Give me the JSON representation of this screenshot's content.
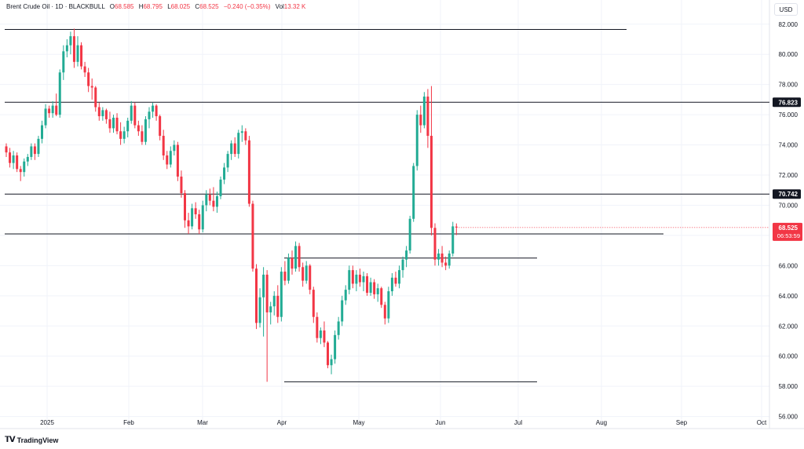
{
  "legend": {
    "symbol": "Brent Crude Oil · 1D · BLACKBULL",
    "o_label": "O",
    "o_value": "68.585",
    "h_label": "H",
    "h_value": "68.795",
    "l_label": "L",
    "l_value": "68.025",
    "c_label": "C",
    "c_value": "68.525",
    "change": "−0.240 (−0.35%)",
    "vol_label": "Vol",
    "vol_value": "13.32 K"
  },
  "currency": "USD",
  "footer": {
    "logo_mark": "𝗧𝗩",
    "brand": "TradingView"
  },
  "colors": {
    "up": "#22ab94",
    "down": "#f23645",
    "grid": "#f0f3fa",
    "line": "#131722"
  },
  "chart_data": {
    "type": "candlestick",
    "y_ticks": [
      "56.000",
      "58.000",
      "60.000",
      "62.000",
      "64.000",
      "66.000",
      "68.000",
      "70.000",
      "72.000",
      "74.000",
      "76.000",
      "78.000",
      "80.000",
      "82.000"
    ],
    "x_ticks": [
      "2025",
      "Feb",
      "Mar",
      "Apr",
      "May",
      "Jun",
      "Jul",
      "Aug",
      "Sep",
      "Oct"
    ],
    "ylim": [
      55.2,
      83.6
    ],
    "horizontal_levels": [
      {
        "price": 81.65,
        "x_end": "Aug",
        "label": ""
      },
      {
        "price": 76.823,
        "x_end": "axis",
        "label": "76.823"
      },
      {
        "price": 70.742,
        "x_end": "axis",
        "label": "70.742"
      },
      {
        "price": 68.1,
        "x_end": "Sep",
        "label": ""
      },
      {
        "price": 66.5,
        "x_start": "Apr",
        "x_end": "Jul",
        "label": ""
      },
      {
        "price": 58.3,
        "x_start": "Apr",
        "x_end": "Jul",
        "label": ""
      }
    ],
    "last_price": {
      "value": "68.525",
      "countdown": "06:53:59"
    },
    "candles": [
      [
        73.9,
        74.1,
        73.2,
        73.5
      ],
      [
        73.5,
        73.8,
        72.5,
        72.8
      ],
      [
        72.8,
        73.6,
        72.4,
        73.3
      ],
      [
        73.3,
        73.5,
        72.2,
        72.4
      ],
      [
        72.4,
        72.6,
        71.6,
        72.2
      ],
      [
        72.2,
        73.1,
        71.9,
        72.9
      ],
      [
        72.9,
        73.4,
        72.6,
        73.2
      ],
      [
        73.2,
        74.1,
        73.0,
        73.9
      ],
      [
        73.9,
        74.1,
        73.0,
        73.4
      ],
      [
        73.4,
        74.6,
        73.2,
        74.4
      ],
      [
        74.4,
        75.6,
        74.1,
        75.3
      ],
      [
        75.3,
        76.7,
        75.1,
        76.4
      ],
      [
        76.4,
        76.6,
        75.8,
        76.1
      ],
      [
        76.1,
        76.9,
        75.8,
        76.6
      ],
      [
        76.6,
        77.4,
        75.9,
        76.0
      ],
      [
        76.0,
        79.0,
        75.8,
        78.8
      ],
      [
        78.8,
        80.6,
        78.3,
        80.2
      ],
      [
        80.2,
        81.0,
        79.8,
        80.6
      ],
      [
        80.6,
        81.5,
        80.0,
        81.2
      ],
      [
        81.2,
        81.7,
        79.1,
        79.5
      ],
      [
        79.5,
        81.2,
        79.2,
        80.6
      ],
      [
        80.6,
        80.8,
        79.0,
        79.2
      ],
      [
        79.2,
        79.5,
        78.5,
        78.8
      ],
      [
        78.8,
        79.1,
        77.5,
        77.9
      ],
      [
        77.9,
        78.4,
        77.0,
        77.8
      ],
      [
        77.8,
        77.9,
        76.2,
        76.5
      ],
      [
        76.5,
        76.8,
        75.6,
        75.9
      ],
      [
        75.9,
        76.5,
        75.6,
        76.3
      ],
      [
        76.3,
        76.4,
        75.4,
        75.7
      ],
      [
        75.7,
        76.2,
        74.8,
        75.1
      ],
      [
        75.1,
        76.0,
        74.8,
        75.8
      ],
      [
        75.8,
        76.1,
        74.7,
        74.9
      ],
      [
        74.9,
        75.5,
        74.0,
        74.4
      ],
      [
        74.4,
        75.2,
        74.1,
        74.9
      ],
      [
        74.9,
        75.8,
        74.5,
        75.6
      ],
      [
        75.6,
        76.9,
        75.4,
        76.6
      ],
      [
        76.6,
        76.8,
        75.1,
        75.3
      ],
      [
        75.3,
        75.6,
        74.6,
        74.9
      ],
      [
        74.9,
        75.3,
        74.0,
        74.2
      ],
      [
        74.2,
        75.9,
        74.0,
        75.7
      ],
      [
        75.7,
        76.5,
        75.1,
        76.2
      ],
      [
        76.2,
        76.8,
        75.8,
        76.6
      ],
      [
        76.6,
        76.7,
        75.6,
        75.9
      ],
      [
        75.9,
        76.0,
        74.3,
        74.6
      ],
      [
        74.6,
        75.0,
        73.0,
        73.3
      ],
      [
        73.3,
        73.6,
        72.4,
        72.7
      ],
      [
        72.7,
        73.9,
        72.5,
        73.6
      ],
      [
        73.6,
        74.3,
        73.3,
        74.0
      ],
      [
        74.0,
        74.2,
        71.6,
        71.9
      ],
      [
        71.9,
        72.3,
        70.5,
        70.8
      ],
      [
        70.8,
        71.0,
        68.5,
        69.0
      ],
      [
        69.0,
        69.5,
        68.1,
        68.6
      ],
      [
        68.6,
        70.1,
        68.4,
        69.8
      ],
      [
        69.8,
        70.2,
        69.1,
        69.4
      ],
      [
        69.4,
        69.7,
        68.1,
        68.4
      ],
      [
        68.4,
        70.3,
        68.2,
        70.0
      ],
      [
        70.0,
        71.0,
        69.6,
        70.7
      ],
      [
        70.7,
        71.1,
        70.0,
        70.3
      ],
      [
        70.3,
        71.2,
        69.6,
        69.9
      ],
      [
        69.9,
        70.9,
        69.5,
        70.6
      ],
      [
        70.6,
        71.9,
        70.4,
        71.7
      ],
      [
        71.7,
        72.8,
        71.4,
        72.5
      ],
      [
        72.5,
        73.6,
        72.2,
        73.4
      ],
      [
        73.4,
        74.3,
        73.0,
        74.1
      ],
      [
        74.1,
        74.5,
        73.2,
        73.4
      ],
      [
        73.4,
        75.0,
        73.1,
        74.8
      ],
      [
        74.8,
        75.3,
        74.2,
        74.9
      ],
      [
        74.9,
        75.1,
        74.0,
        74.3
      ],
      [
        74.3,
        74.6,
        69.9,
        70.1
      ],
      [
        70.1,
        70.3,
        65.6,
        65.8
      ],
      [
        65.8,
        66.1,
        61.8,
        62.2
      ],
      [
        62.2,
        64.5,
        61.9,
        63.9
      ],
      [
        63.9,
        65.9,
        61.3,
        65.4
      ],
      [
        65.4,
        65.7,
        58.3,
        62.9
      ],
      [
        62.9,
        63.6,
        62.1,
        63.3
      ],
      [
        63.3,
        64.3,
        62.7,
        64.0
      ],
      [
        64.0,
        64.7,
        62.2,
        62.6
      ],
      [
        62.6,
        65.9,
        62.3,
        65.6
      ],
      [
        65.6,
        66.3,
        64.7,
        65.0
      ],
      [
        65.0,
        66.8,
        64.8,
        66.5
      ],
      [
        66.5,
        67.0,
        65.4,
        65.8
      ],
      [
        65.8,
        67.6,
        65.6,
        67.3
      ],
      [
        67.3,
        67.5,
        65.6,
        65.9
      ],
      [
        65.9,
        66.2,
        64.6,
        65.0
      ],
      [
        65.0,
        66.3,
        64.8,
        66.0
      ],
      [
        66.0,
        66.1,
        64.1,
        64.4
      ],
      [
        64.4,
        64.6,
        62.2,
        62.6
      ],
      [
        62.6,
        62.9,
        60.9,
        61.2
      ],
      [
        61.2,
        61.9,
        60.8,
        61.7
      ],
      [
        61.7,
        62.3,
        60.6,
        60.9
      ],
      [
        60.9,
        61.0,
        59.2,
        59.4
      ],
      [
        59.4,
        60.1,
        58.8,
        59.8
      ],
      [
        59.8,
        61.7,
        59.5,
        61.4
      ],
      [
        61.4,
        62.6,
        61.1,
        62.3
      ],
      [
        62.3,
        64.0,
        62.0,
        63.7
      ],
      [
        63.7,
        64.7,
        63.4,
        64.4
      ],
      [
        64.4,
        66.0,
        64.1,
        65.7
      ],
      [
        65.7,
        66.0,
        64.5,
        64.8
      ],
      [
        64.8,
        65.7,
        64.3,
        65.4
      ],
      [
        65.4,
        65.8,
        64.6,
        64.9
      ],
      [
        64.9,
        65.6,
        64.3,
        65.3
      ],
      [
        65.3,
        65.5,
        64.0,
        64.2
      ],
      [
        64.2,
        65.2,
        64.0,
        64.9
      ],
      [
        64.9,
        65.1,
        63.8,
        64.1
      ],
      [
        64.1,
        64.8,
        63.6,
        64.5
      ],
      [
        64.5,
        64.6,
        63.2,
        63.4
      ],
      [
        63.4,
        63.6,
        62.1,
        62.5
      ],
      [
        62.5,
        64.6,
        62.2,
        64.3
      ],
      [
        64.3,
        65.5,
        64.0,
        65.2
      ],
      [
        65.2,
        65.6,
        64.6,
        64.8
      ],
      [
        64.8,
        66.0,
        64.5,
        65.7
      ],
      [
        65.7,
        66.6,
        65.2,
        66.4
      ],
      [
        66.4,
        67.3,
        65.9,
        67.0
      ],
      [
        67.0,
        69.3,
        66.8,
        69.1
      ],
      [
        69.1,
        72.8,
        68.9,
        72.6
      ],
      [
        72.6,
        76.3,
        72.3,
        76.0
      ],
      [
        76.0,
        76.6,
        74.8,
        75.3
      ],
      [
        75.3,
        77.5,
        75.1,
        77.2
      ],
      [
        77.2,
        77.7,
        73.8,
        74.6
      ],
      [
        74.6,
        77.9,
        68.0,
        68.5
      ],
      [
        68.5,
        68.8,
        66.0,
        66.4
      ],
      [
        66.4,
        67.1,
        66.0,
        66.8
      ],
      [
        66.8,
        67.3,
        65.9,
        66.2
      ],
      [
        66.2,
        66.6,
        65.7,
        66.0
      ],
      [
        66.0,
        67.0,
        65.8,
        66.8
      ],
      [
        66.8,
        68.9,
        66.6,
        68.6
      ],
      [
        68.585,
        68.795,
        68.025,
        68.525
      ]
    ]
  }
}
